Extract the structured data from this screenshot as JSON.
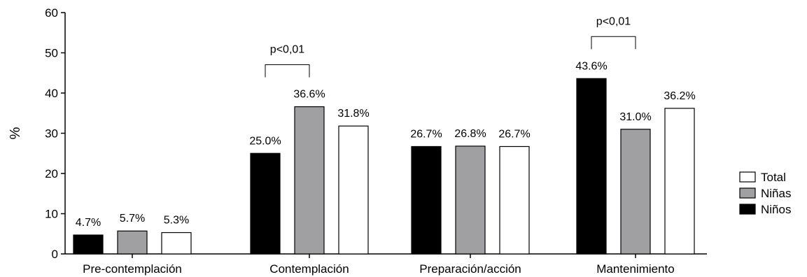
{
  "chart_data": {
    "type": "bar",
    "ylabel": "%",
    "xlabel": "",
    "title": "",
    "ylim": [
      0,
      60
    ],
    "yticks": [
      0,
      10,
      20,
      30,
      40,
      50,
      60
    ],
    "categories": [
      "Pre-contemplación",
      "Contemplación",
      "Preparación/acción",
      "Mantenimiento"
    ],
    "series": [
      {
        "name": "Niños",
        "color": "#000000",
        "values": [
          4.7,
          25.0,
          26.7,
          43.6
        ],
        "labels": [
          "4.7%",
          "25.0%",
          "26.7%",
          "43.6%"
        ]
      },
      {
        "name": "Niñas",
        "color": "#a0a0a3",
        "values": [
          5.7,
          36.6,
          26.8,
          31.0
        ],
        "labels": [
          "5.7%",
          "36.6%",
          "26.8%",
          "31.0%"
        ]
      },
      {
        "name": "Total",
        "color": "#ffffff",
        "values": [
          5.3,
          31.8,
          26.7,
          36.2
        ],
        "labels": [
          "5.3%",
          "31.8%",
          "26.7%",
          "36.2%"
        ]
      }
    ],
    "legend": {
      "position": "right",
      "order": [
        "Total",
        "Niñas",
        "Niños"
      ]
    },
    "annotations": [
      {
        "text": "p<0,01",
        "category": "Contemplación",
        "between": [
          "Niños",
          "Niñas"
        ]
      },
      {
        "text": "p<0,01",
        "category": "Mantenimiento",
        "between": [
          "Niños",
          "Niñas"
        ]
      }
    ],
    "grid": false
  }
}
